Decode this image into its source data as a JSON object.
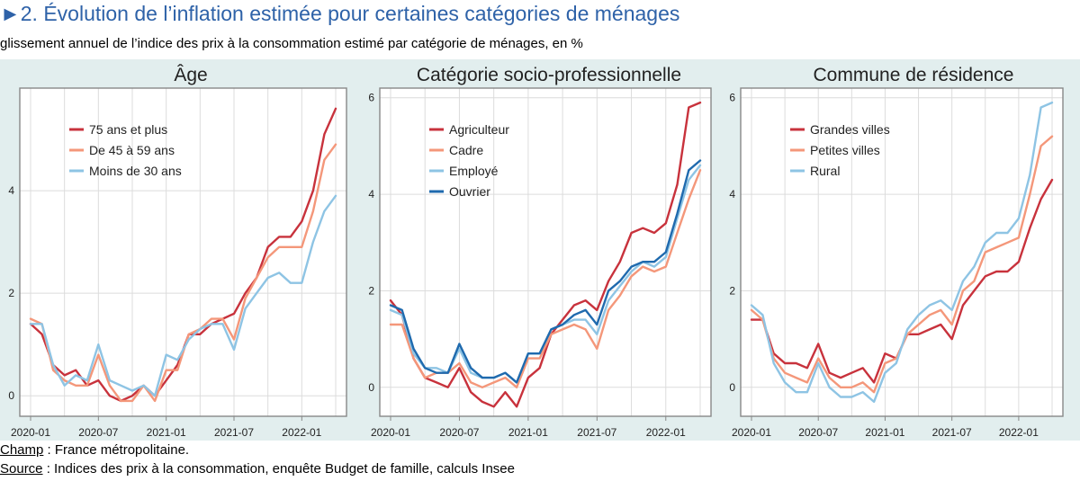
{
  "header": {
    "title": "►2. Évolution de l’inflation estimée pour certaines catégories de ménages",
    "subtitle": "glissement annuel de l’indice des prix à la consommation estimé par catégorie de ménages, en %"
  },
  "footer": {
    "champ_label": "Champ",
    "champ_text": " : France métropolitaine.",
    "source_label": "Source",
    "source_text": " : Indices des prix à la consommation, enquête Budget de famille, calculs Insee"
  },
  "chart_data": [
    {
      "type": "line",
      "title": "Âge",
      "x": [
        "2020-01",
        "2020-02",
        "2020-03",
        "2020-04",
        "2020-05",
        "2020-06",
        "2020-07",
        "2020-08",
        "2020-09",
        "2020-10",
        "2020-11",
        "2020-12",
        "2021-01",
        "2021-02",
        "2021-03",
        "2021-04",
        "2021-05",
        "2021-06",
        "2021-07",
        "2021-08",
        "2021-09",
        "2021-10",
        "2021-11",
        "2021-12",
        "2022-01",
        "2022-02",
        "2022-03",
        "2022-04"
      ],
      "xticks": [
        "2020-01",
        "2020-07",
        "2021-01",
        "2021-07",
        "2022-01"
      ],
      "ylim": [
        -0.4,
        6.0
      ],
      "yticks": [
        0,
        2,
        4
      ],
      "legend_position": "top-left",
      "series": [
        {
          "name": "75 ans et plus",
          "color": "#c8323c",
          "values": [
            1.4,
            1.2,
            0.6,
            0.4,
            0.5,
            0.2,
            0.3,
            0.0,
            -0.1,
            0.0,
            0.2,
            0.0,
            0.3,
            0.6,
            1.2,
            1.2,
            1.4,
            1.5,
            1.6,
            2.0,
            2.3,
            2.9,
            3.1,
            3.1,
            3.4,
            4.0,
            5.1,
            5.6
          ]
        },
        {
          "name": "De 45 à 59 ans",
          "color": "#f4977a",
          "values": [
            1.5,
            1.4,
            0.5,
            0.3,
            0.2,
            0.2,
            0.8,
            0.2,
            -0.1,
            -0.1,
            0.2,
            -0.1,
            0.5,
            0.5,
            1.2,
            1.3,
            1.5,
            1.5,
            1.1,
            1.9,
            2.3,
            2.7,
            2.9,
            2.9,
            2.9,
            3.6,
            4.6,
            4.9
          ]
        },
        {
          "name": "Moins de 30 ans",
          "color": "#8ec4e4",
          "values": [
            1.4,
            1.4,
            0.6,
            0.2,
            0.4,
            0.3,
            1.0,
            0.3,
            0.2,
            0.1,
            0.2,
            0.0,
            0.8,
            0.7,
            1.1,
            1.3,
            1.4,
            1.4,
            0.9,
            1.7,
            2.0,
            2.3,
            2.4,
            2.2,
            2.2,
            3.0,
            3.6,
            3.9
          ]
        }
      ]
    },
    {
      "type": "line",
      "title": "Catégorie socio-professionnelle",
      "x": [
        "2020-01",
        "2020-02",
        "2020-03",
        "2020-04",
        "2020-05",
        "2020-06",
        "2020-07",
        "2020-08",
        "2020-09",
        "2020-10",
        "2020-11",
        "2020-12",
        "2021-01",
        "2021-02",
        "2021-03",
        "2021-04",
        "2021-05",
        "2021-06",
        "2021-07",
        "2021-08",
        "2021-09",
        "2021-10",
        "2021-11",
        "2021-12",
        "2022-01",
        "2022-02",
        "2022-03",
        "2022-04"
      ],
      "xticks": [
        "2020-01",
        "2020-07",
        "2021-01",
        "2021-07",
        "2022-01"
      ],
      "ylim": [
        -0.6,
        6.2
      ],
      "yticks": [
        0,
        2,
        4,
        6
      ],
      "legend_position": "top-left",
      "series": [
        {
          "name": "Agriculteur",
          "color": "#c8323c",
          "values": [
            1.8,
            1.5,
            0.6,
            0.2,
            0.1,
            0.0,
            0.4,
            -0.1,
            -0.3,
            -0.4,
            -0.1,
            -0.4,
            0.2,
            0.4,
            1.1,
            1.4,
            1.7,
            1.8,
            1.6,
            2.2,
            2.6,
            3.2,
            3.3,
            3.2,
            3.4,
            4.2,
            5.8,
            5.9
          ]
        },
        {
          "name": "Cadre",
          "color": "#f4977a",
          "values": [
            1.3,
            1.3,
            0.6,
            0.2,
            0.3,
            0.3,
            0.5,
            0.1,
            0.0,
            0.1,
            0.2,
            0.0,
            0.6,
            0.6,
            1.1,
            1.2,
            1.3,
            1.2,
            0.8,
            1.6,
            1.9,
            2.3,
            2.5,
            2.4,
            2.5,
            3.2,
            3.9,
            4.5
          ]
        },
        {
          "name": "Employé",
          "color": "#8ec4e4",
          "values": [
            1.6,
            1.5,
            0.7,
            0.4,
            0.4,
            0.3,
            0.8,
            0.3,
            0.2,
            0.2,
            0.3,
            0.1,
            0.7,
            0.7,
            1.2,
            1.3,
            1.4,
            1.4,
            1.1,
            1.8,
            2.1,
            2.4,
            2.6,
            2.5,
            2.7,
            3.5,
            4.3,
            4.6
          ]
        },
        {
          "name": "Ouvrier",
          "color": "#1f6aae",
          "values": [
            1.7,
            1.6,
            0.8,
            0.4,
            0.3,
            0.3,
            0.9,
            0.4,
            0.2,
            0.2,
            0.3,
            0.1,
            0.7,
            0.7,
            1.2,
            1.3,
            1.5,
            1.6,
            1.3,
            2.0,
            2.2,
            2.5,
            2.6,
            2.6,
            2.8,
            3.6,
            4.5,
            4.7
          ]
        }
      ]
    },
    {
      "type": "line",
      "title": "Commune de résidence",
      "x": [
        "2020-01",
        "2020-02",
        "2020-03",
        "2020-04",
        "2020-05",
        "2020-06",
        "2020-07",
        "2020-08",
        "2020-09",
        "2020-10",
        "2020-11",
        "2020-12",
        "2021-01",
        "2021-02",
        "2021-03",
        "2021-04",
        "2021-05",
        "2021-06",
        "2021-07",
        "2021-08",
        "2021-09",
        "2021-10",
        "2021-11",
        "2021-12",
        "2022-01",
        "2022-02",
        "2022-03",
        "2022-04"
      ],
      "xticks": [
        "2020-01",
        "2020-07",
        "2021-01",
        "2021-07",
        "2022-01"
      ],
      "ylim": [
        -0.6,
        6.2
      ],
      "yticks": [
        0,
        2,
        4,
        6
      ],
      "legend_position": "top-left",
      "series": [
        {
          "name": "Grandes villes",
          "color": "#c8323c",
          "values": [
            1.4,
            1.4,
            0.7,
            0.5,
            0.5,
            0.4,
            0.9,
            0.3,
            0.2,
            0.3,
            0.4,
            0.1,
            0.7,
            0.6,
            1.1,
            1.1,
            1.2,
            1.3,
            1.0,
            1.7,
            2.0,
            2.3,
            2.4,
            2.4,
            2.6,
            3.3,
            3.9,
            4.3
          ]
        },
        {
          "name": "Petites villes",
          "color": "#f4977a",
          "values": [
            1.6,
            1.4,
            0.6,
            0.3,
            0.2,
            0.1,
            0.6,
            0.2,
            0.0,
            0.0,
            0.1,
            -0.1,
            0.5,
            0.6,
            1.1,
            1.3,
            1.5,
            1.6,
            1.3,
            2.0,
            2.2,
            2.8,
            2.9,
            3.0,
            3.1,
            4.0,
            5.0,
            5.2
          ]
        },
        {
          "name": "Rural",
          "color": "#8ec4e4",
          "values": [
            1.7,
            1.5,
            0.5,
            0.1,
            -0.1,
            -0.1,
            0.5,
            0.0,
            -0.2,
            -0.2,
            -0.1,
            -0.3,
            0.3,
            0.5,
            1.2,
            1.5,
            1.7,
            1.8,
            1.6,
            2.2,
            2.5,
            3.0,
            3.2,
            3.2,
            3.5,
            4.4,
            5.8,
            5.9
          ]
        }
      ]
    }
  ]
}
